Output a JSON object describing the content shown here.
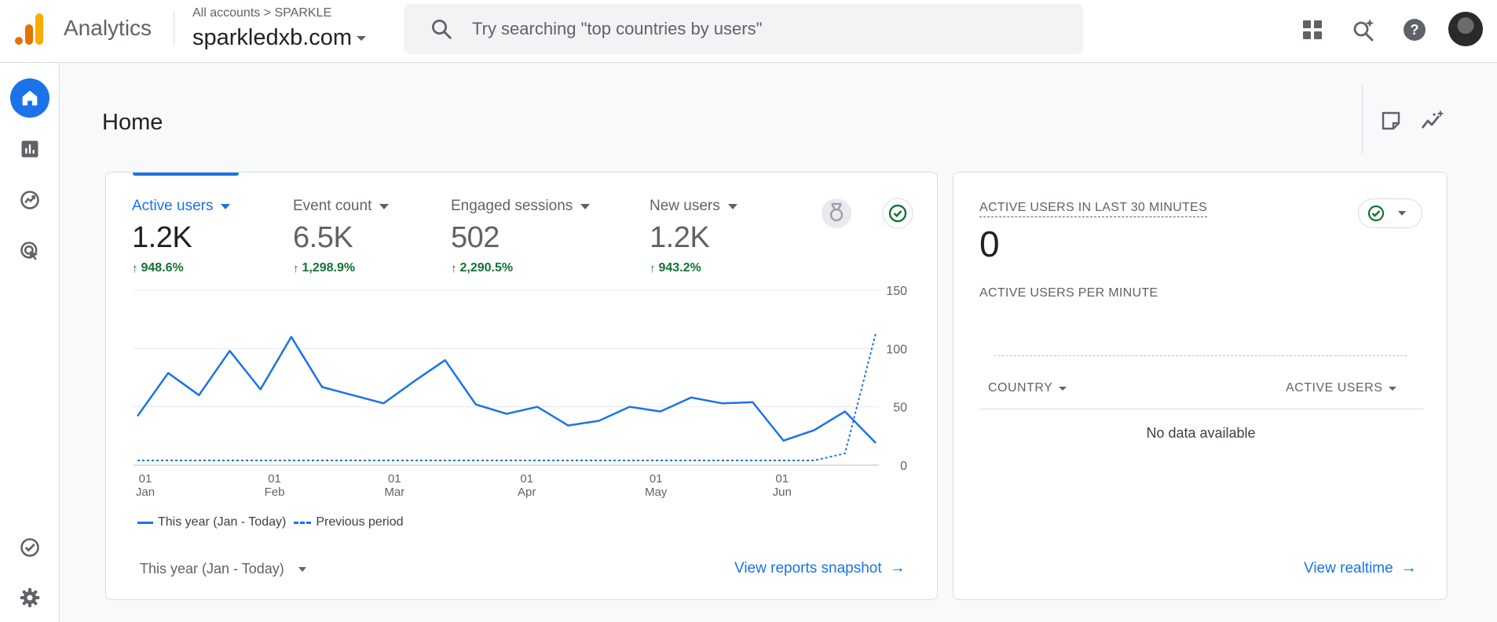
{
  "header": {
    "app_name": "Analytics",
    "breadcrumb": "All accounts > SPARKLE",
    "property": "sparkledxb.com",
    "search_placeholder": "Try searching \"top countries by users\""
  },
  "colors": {
    "accent": "#1a73e8",
    "positive": "#137333",
    "logo_orange": "#f9ab00",
    "logo_dark_orange": "#e37400"
  },
  "page": {
    "title": "Home"
  },
  "metrics": [
    {
      "label": "Active users",
      "value": "1.2K",
      "change": "948.6%"
    },
    {
      "label": "Event count",
      "value": "6.5K",
      "change": "1,298.9%"
    },
    {
      "label": "Engaged sessions",
      "value": "502",
      "change": "2,290.5%"
    },
    {
      "label": "New users",
      "value": "1.2K",
      "change": "943.2%"
    }
  ],
  "chart_data": {
    "type": "line",
    "y_ticks": [
      "150",
      "100",
      "50",
      "0"
    ],
    "ylim": [
      0,
      150
    ],
    "x_ticks": [
      {
        "day": "01",
        "month": "Jan"
      },
      {
        "day": "01",
        "month": "Feb"
      },
      {
        "day": "01",
        "month": "Mar"
      },
      {
        "day": "01",
        "month": "Apr"
      },
      {
        "day": "01",
        "month": "May"
      },
      {
        "day": "01",
        "month": "Jun"
      }
    ],
    "series": [
      {
        "name": "This year (Jan - Today)",
        "style": "solid",
        "values": [
          42,
          79,
          60,
          98,
          65,
          110,
          67,
          60,
          53,
          72,
          90,
          52,
          44,
          50,
          34,
          38,
          50,
          46,
          58,
          53,
          54,
          21,
          30,
          46,
          19
        ]
      },
      {
        "name": "Previous period",
        "style": "dashed",
        "values": [
          4,
          4,
          4,
          4,
          4,
          4,
          4,
          4,
          4,
          4,
          4,
          4,
          4,
          4,
          4,
          4,
          4,
          4,
          4,
          4,
          4,
          4,
          4,
          10,
          113
        ]
      }
    ]
  },
  "legend": {
    "this_year": "This year (Jan - Today)",
    "previous": "Previous period"
  },
  "footer": {
    "date_range": "This year (Jan - Today)",
    "view_snapshot": "View reports snapshot"
  },
  "realtime": {
    "title": "ACTIVE USERS IN LAST 30 MINUTES",
    "value": "0",
    "per_minute": "ACTIVE USERS PER MINUTE",
    "col_country": "COUNTRY",
    "col_users": "ACTIVE USERS",
    "no_data": "No data available",
    "view_realtime": "View realtime"
  }
}
